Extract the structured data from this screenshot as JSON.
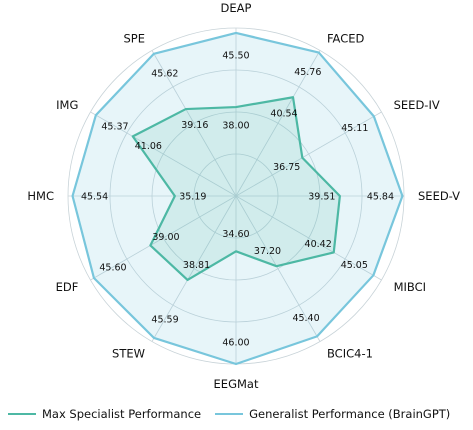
{
  "chart_data": {
    "type": "radar",
    "categories": [
      "DEAP",
      "FACED",
      "SEED-IV",
      "SEED-V",
      "MIBCI",
      "BCIC4-1",
      "EEGMat",
      "STEW",
      "EDF",
      "HMC",
      "IMG",
      "SPE"
    ],
    "series": [
      {
        "name": "Max Specialist Performance",
        "values": [
          38.0,
          40.54,
          36.75,
          39.51,
          40.42,
          37.2,
          34.6,
          38.81,
          39.0,
          35.19,
          41.06,
          39.16
        ],
        "color": "#4db8a4",
        "fill": "rgba(77,184,164,0.14)"
      },
      {
        "name": "Generalist Performance (BrainGPT)",
        "values": [
          45.5,
          45.76,
          45.11,
          45.84,
          45.05,
          45.4,
          46.0,
          45.59,
          45.6,
          45.54,
          45.37,
          45.62
        ],
        "color": "#78c6dc",
        "fill": "rgba(120,198,220,0.18)"
      }
    ],
    "rlim": [
      29,
      46
    ],
    "grid": true,
    "legend_position": "bottom"
  }
}
